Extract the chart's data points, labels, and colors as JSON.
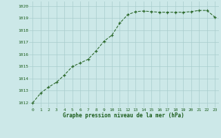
{
  "x": [
    0,
    1,
    2,
    3,
    4,
    5,
    6,
    7,
    8,
    9,
    10,
    11,
    12,
    13,
    14,
    15,
    16,
    17,
    18,
    19,
    20,
    21,
    22,
    23
  ],
  "y": [
    1012.0,
    1012.8,
    1013.3,
    1013.7,
    1014.3,
    1015.0,
    1015.3,
    1015.6,
    1016.3,
    1017.1,
    1017.6,
    1018.6,
    1019.3,
    1019.55,
    1019.6,
    1019.55,
    1019.5,
    1019.5,
    1019.5,
    1019.5,
    1019.55,
    1019.65,
    1019.65,
    1019.1
  ],
  "line_color": "#2d6a2d",
  "marker_color": "#2d6a2d",
  "bg_color": "#cce8e8",
  "grid_color": "#a8cccc",
  "xlabel": "Graphe pression niveau de la mer (hPa)",
  "xlabel_color": "#1a5c1a",
  "tick_color": "#1a5c1a",
  "yticks": [
    1012,
    1013,
    1014,
    1015,
    1016,
    1017,
    1018,
    1019,
    1020
  ],
  "xticks": [
    0,
    1,
    2,
    3,
    4,
    5,
    6,
    7,
    8,
    9,
    10,
    11,
    12,
    13,
    14,
    15,
    16,
    17,
    18,
    19,
    20,
    21,
    22,
    23
  ],
  "ylim": [
    1011.6,
    1020.4
  ],
  "xlim": [
    -0.5,
    23.5
  ]
}
